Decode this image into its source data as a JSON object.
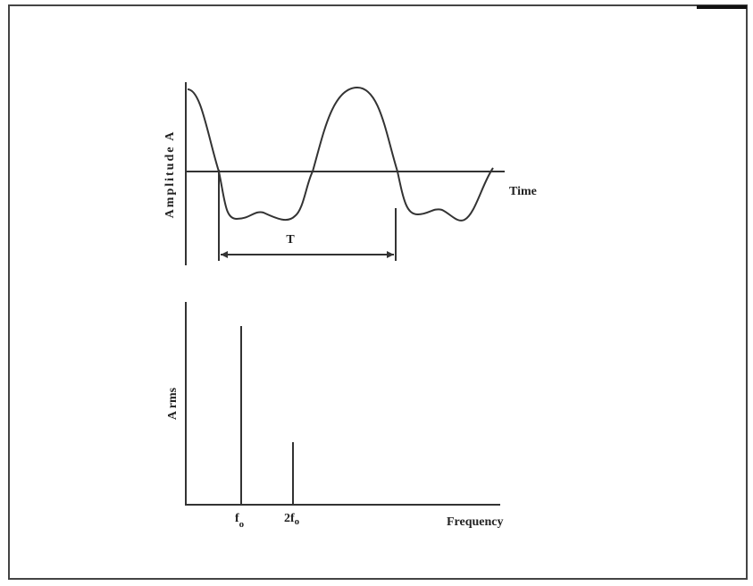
{
  "time_plot": {
    "y_label": "Amplitude A",
    "x_label": "Time",
    "period_label": "T"
  },
  "spectrum_plot": {
    "y_label": "A rms",
    "x_label": "Frequency",
    "peaks": [
      {
        "label": "f",
        "sub": "o"
      },
      {
        "label": "2f",
        "sub": "o"
      }
    ]
  }
}
